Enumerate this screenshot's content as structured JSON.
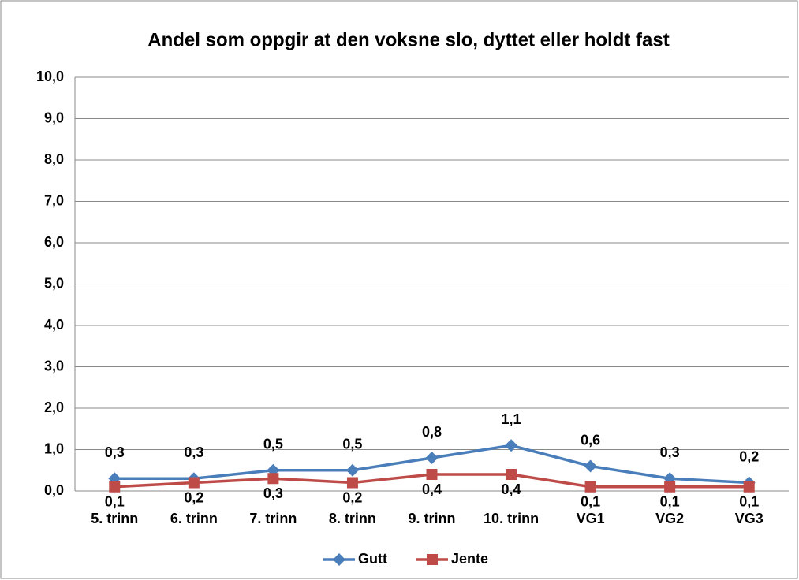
{
  "chart_data": {
    "type": "line",
    "title": "Andel som oppgir at den voksne slo, dyttet eller holdt fast",
    "categories": [
      "5. trinn",
      "6. trinn",
      "7. trinn",
      "8. trinn",
      "9. trinn",
      "10. trinn",
      "VG1",
      "VG2",
      "VG3"
    ],
    "series": [
      {
        "name": "Gutt",
        "color": "#4a7ebb",
        "marker": "diamond",
        "values": [
          0.3,
          0.3,
          0.5,
          0.5,
          0.8,
          1.1,
          0.6,
          0.3,
          0.2
        ],
        "value_labels": [
          "0,3",
          "0,3",
          "0,5",
          "0,5",
          "0,8",
          "1,1",
          "0,6",
          "0,3",
          "0,2"
        ]
      },
      {
        "name": "Jente",
        "color": "#be4b48",
        "marker": "square",
        "values": [
          0.1,
          0.2,
          0.3,
          0.2,
          0.4,
          0.4,
          0.1,
          0.1,
          0.1
        ],
        "value_labels": [
          "0,1",
          "0,2",
          "0,3",
          "0,2",
          "0,4",
          "0,4",
          "0,1",
          "0,1",
          "0,1"
        ]
      }
    ],
    "ylim": [
      0,
      10
    ],
    "yticks": [
      {
        "value": 0,
        "label": "0,0"
      },
      {
        "value": 1,
        "label": "1,0"
      },
      {
        "value": 2,
        "label": "2,0"
      },
      {
        "value": 3,
        "label": "3,0"
      },
      {
        "value": 4,
        "label": "4,0"
      },
      {
        "value": 5,
        "label": "5,0"
      },
      {
        "value": 6,
        "label": "6,0"
      },
      {
        "value": 7,
        "label": "7,0"
      },
      {
        "value": 8,
        "label": "8,0"
      },
      {
        "value": 9,
        "label": "9,0"
      },
      {
        "value": 10,
        "label": "10,0"
      }
    ],
    "grid": true,
    "legend": "bottom"
  }
}
